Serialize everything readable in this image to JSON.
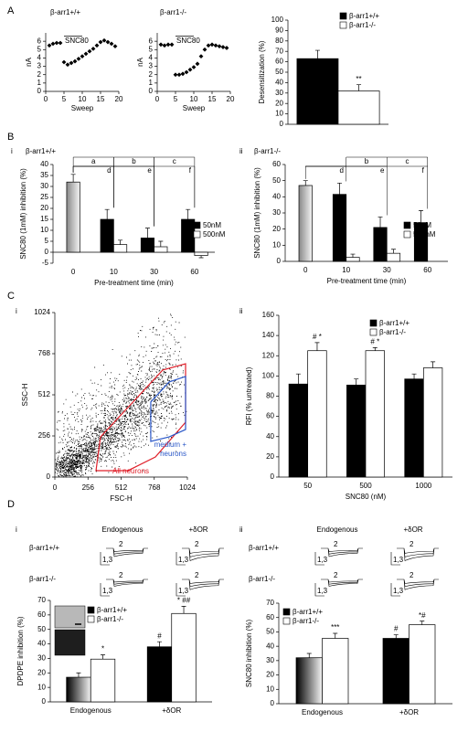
{
  "panels": [
    "A",
    "B",
    "C",
    "D"
  ],
  "traces": {
    "columns": [
      "Endogenous",
      "+δOR"
    ],
    "rows": [
      "β-arr1+/+",
      "β-arr1-/-"
    ],
    "scale": [
      "2",
      "1,3"
    ]
  },
  "chart_data": [
    {
      "type": "scatter",
      "title": "β-arr1+/+",
      "x_label": "Sweep",
      "y_label": "nA",
      "color": "#000000",
      "x": [
        1,
        2,
        3,
        4,
        5,
        6,
        7,
        8,
        9,
        10,
        11,
        12,
        13,
        14,
        15,
        16,
        17,
        18,
        19
      ],
      "values": [
        5.5,
        5.7,
        5.8,
        5.8,
        3.5,
        3.2,
        3.4,
        3.6,
        3.9,
        4.2,
        4.5,
        4.8,
        5.1,
        5.5,
        5.9,
        6.1,
        5.9,
        5.7,
        5.4
      ],
      "xlim": [
        0,
        20
      ],
      "xticks": [
        0,
        5,
        10,
        15,
        20
      ],
      "ylim": [
        0,
        7
      ],
      "yticks": [
        0,
        1,
        2,
        3,
        4,
        5,
        6
      ],
      "annotations": [
        {
          "text": "SNC80",
          "x": [
            5,
            10
          ],
          "y": 6.6
        }
      ]
    },
    {
      "type": "scatter",
      "title": "β-arr1-/-",
      "x_label": "Sweep",
      "y_label": "nA",
      "color": "#000000",
      "x": [
        1,
        2,
        3,
        4,
        5,
        6,
        7,
        8,
        9,
        10,
        11,
        12,
        13,
        14,
        15,
        16,
        17,
        18,
        19
      ],
      "values": [
        5.6,
        5.5,
        5.6,
        5.6,
        2.0,
        2.0,
        2.1,
        2.3,
        2.6,
        2.9,
        3.3,
        4.2,
        5.0,
        5.5,
        5.6,
        5.5,
        5.4,
        5.3,
        5.2
      ],
      "xlim": [
        0,
        20
      ],
      "xticks": [
        0,
        5,
        10,
        15,
        20
      ],
      "ylim": [
        0,
        7
      ],
      "yticks": [
        0,
        1,
        2,
        3,
        4,
        5,
        6
      ],
      "annotations": [
        {
          "text": "SNC80",
          "x": [
            5,
            10
          ],
          "y": 6.6
        }
      ]
    },
    {
      "type": "bar",
      "y_label": "Desensitization (%)",
      "categories": [
        null
      ],
      "series": [
        {
          "name": "β-arr1+/+",
          "color": "#000000",
          "values": [
            63
          ],
          "errors": [
            8
          ]
        },
        {
          "name": "β-arr1-/-",
          "color": "#ffffff",
          "values": [
            32
          ],
          "errors": [
            6
          ]
        }
      ],
      "ylim": [
        0,
        100
      ],
      "yticks": [
        0,
        10,
        20,
        30,
        40,
        50,
        60,
        70,
        80,
        90,
        100
      ],
      "annotations": [
        {
          "text": "**",
          "series": 1,
          "category": 0
        }
      ]
    },
    {
      "type": "bar",
      "label": "i",
      "subtitle": "β-arr1+/+",
      "y_label": "SNC80 (1mM) inhibition (%)",
      "x_label": "Pre-treatment time (min)",
      "categories": [
        "0",
        "10",
        "30",
        "60"
      ],
      "series": [
        {
          "color": "#888888",
          "fill_style": "gradient",
          "values": [
            32,
            null,
            null,
            null
          ],
          "errors": [
            3.5,
            null,
            null,
            null
          ]
        },
        {
          "name": "50nM",
          "color": "#000000",
          "values": [
            null,
            15,
            6.5,
            15
          ],
          "errors": [
            null,
            4.5,
            4.5,
            4.5
          ]
        },
        {
          "name": "500nM",
          "color": "#ffffff",
          "values": [
            null,
            3.5,
            2.5,
            -1.5
          ],
          "errors": [
            null,
            2,
            2.5,
            1
          ]
        }
      ],
      "ylim": [
        -5,
        40
      ],
      "yticks": [
        -5,
        0,
        5,
        10,
        15,
        20,
        25,
        30,
        35,
        40
      ],
      "brackets": [
        {
          "text": "a",
          "from": 0,
          "to": 1,
          "level": 0
        },
        {
          "text": "b",
          "from": 1,
          "to": 2,
          "level": 0
        },
        {
          "text": "c",
          "from": 2,
          "to": 3,
          "level": 0
        },
        {
          "text": "d",
          "from": 0,
          "to": 1,
          "level": 1
        },
        {
          "text": "e",
          "from": 0,
          "to": 2,
          "level": 1
        },
        {
          "text": "f",
          "from": 0,
          "to": 3,
          "level": 1
        }
      ]
    },
    {
      "type": "bar",
      "label": "ii",
      "subtitle": "β-arr1-/-",
      "y_label": "SNC80 (1mM) inhibition (%)",
      "x_label": "Pre-treatment time (min)",
      "categories": [
        "0",
        "10",
        "30",
        "60"
      ],
      "series": [
        {
          "color": "#888888",
          "fill_style": "gradient",
          "values": [
            47,
            null,
            null,
            null
          ],
          "errors": [
            3,
            null,
            null,
            null
          ]
        },
        {
          "name": "50nM",
          "color": "#000000",
          "values": [
            null,
            41.5,
            21,
            24
          ],
          "errors": [
            null,
            7,
            6.5,
            7.5
          ]
        },
        {
          "name": "500nM",
          "color": "#ffffff",
          "values": [
            null,
            2.5,
            5,
            0
          ],
          "errors": [
            null,
            2,
            2.5,
            null
          ]
        }
      ],
      "ylim": [
        0,
        60
      ],
      "yticks": [
        0,
        10,
        20,
        30,
        40,
        50,
        60
      ],
      "brackets": [
        {
          "text": "b",
          "from": 1,
          "to": 2,
          "level": 0
        },
        {
          "text": "c",
          "from": 2,
          "to": 3,
          "level": 0
        },
        {
          "text": "d",
          "from": 0,
          "to": 1,
          "level": 1
        },
        {
          "text": "e",
          "from": 0,
          "to": 2,
          "level": 1
        },
        {
          "text": "f",
          "from": 0,
          "to": 3,
          "level": 1
        }
      ]
    },
    {
      "type": "density",
      "label": "i",
      "x_label": "FSC-H",
      "y_label": "SSC-H",
      "xlim": [
        0,
        1024
      ],
      "xticks": [
        0,
        256,
        512,
        768,
        1024
      ],
      "ylim": [
        0,
        1024
      ],
      "yticks": [
        0,
        256,
        512,
        768,
        1024
      ],
      "gates": [
        {
          "name": "All neurons",
          "color": "#e0202a",
          "x": [
            318,
            353,
            636,
            833,
            1010,
            1010,
            777,
            565
          ],
          "y": [
            40,
            250,
            495,
            666,
            705,
            341,
            125,
            40
          ]
        },
        {
          "name": "medium + neurons",
          "color": "#2a57c8",
          "x": [
            741,
            883,
            1010,
            1010,
            883,
            741
          ],
          "y": [
            467,
            592,
            626,
            296,
            250,
            222
          ]
        }
      ]
    },
    {
      "type": "bar",
      "label": "ii",
      "y_label": "RFI (% untreated)",
      "x_label": "SNC80 (nM)",
      "categories": [
        "50",
        "500",
        "1000"
      ],
      "series": [
        {
          "name": "β-arr1+/+",
          "color": "#000000",
          "values": [
            92,
            91,
            97
          ],
          "errors": [
            10,
            6,
            5
          ]
        },
        {
          "name": "β-arr1-/-",
          "color": "#ffffff",
          "values": [
            125,
            125,
            108
          ],
          "errors": [
            8,
            3,
            6
          ]
        }
      ],
      "ylim": [
        0,
        160
      ],
      "yticks": [
        0,
        20,
        40,
        60,
        80,
        100,
        120,
        140,
        160
      ],
      "annotations": [
        {
          "text": "# *",
          "series": 1,
          "category": 0
        },
        {
          "text": "# *",
          "series": 1,
          "category": 1
        }
      ]
    },
    {
      "type": "bar",
      "label": "i",
      "y_label": "DPDPE inhibition (%)",
      "categories": [
        "Endogenous",
        "+δOR"
      ],
      "series": [
        {
          "name": "β-arr1+/+",
          "color": "#000000",
          "fill_style": [
            "gradient",
            "solid"
          ],
          "values": [
            17,
            38
          ],
          "errors": [
            3,
            3.5
          ]
        },
        {
          "name": "β-arr1-/-",
          "color": "#ffffff",
          "values": [
            29.5,
            61
          ],
          "errors": [
            3,
            5
          ]
        }
      ],
      "ylim": [
        0,
        70
      ],
      "yticks": [
        0,
        10,
        20,
        30,
        40,
        50,
        60,
        70
      ],
      "annotations": [
        {
          "text": "*",
          "series": 1,
          "category": 0
        },
        {
          "text": "#",
          "series": 0,
          "category": 1
        },
        {
          "text": "* ##",
          "series": 1,
          "category": 1
        }
      ]
    },
    {
      "type": "bar",
      "label": "ii",
      "y_label": "SNC80 inhibition (%)",
      "categories": [
        "Endogenous",
        "+δOR"
      ],
      "series": [
        {
          "name": "β-arr1+/+",
          "color": "#000000",
          "fill_style": [
            "gradient",
            "solid"
          ],
          "values": [
            32,
            45.5
          ],
          "errors": [
            3,
            2.5
          ]
        },
        {
          "name": "β-arr1-/-",
          "color": "#ffffff",
          "values": [
            45.5,
            55
          ],
          "errors": [
            3.5,
            2.5
          ]
        }
      ],
      "ylim": [
        0,
        70
      ],
      "yticks": [
        0,
        10,
        20,
        30,
        40,
        50,
        60,
        70
      ],
      "annotations": [
        {
          "text": "***",
          "series": 1,
          "category": 0
        },
        {
          "text": "#",
          "series": 0,
          "category": 1
        },
        {
          "text": "*#",
          "series": 1,
          "category": 1
        }
      ]
    }
  ]
}
